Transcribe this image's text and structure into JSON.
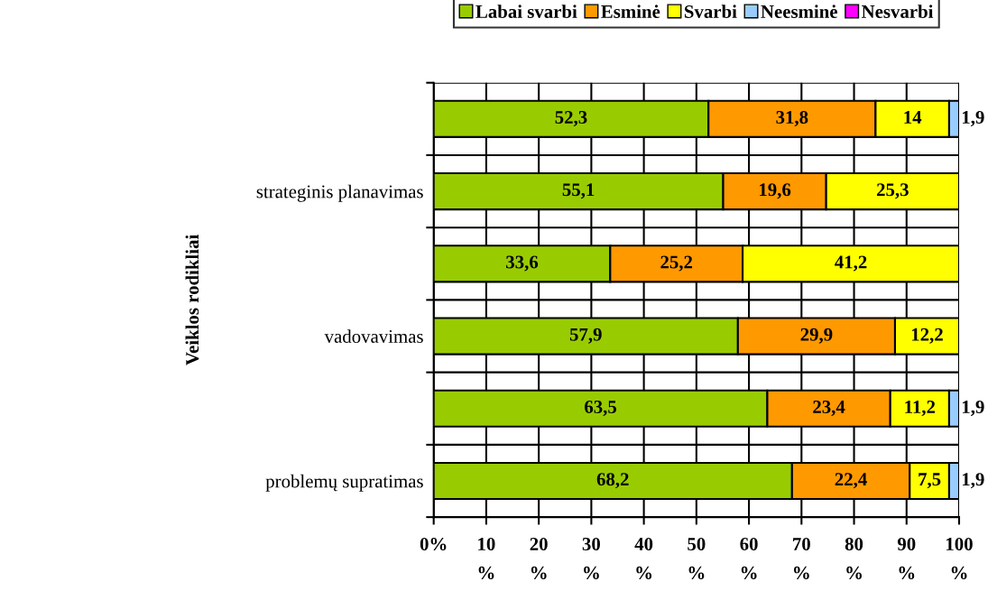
{
  "chart_data": {
    "type": "bar",
    "orientation": "horizontal",
    "stacked": true,
    "ylabel": "Veiklos rodikliai",
    "categories": [
      null,
      "strateginis planavimas",
      null,
      "vadovavimas",
      null,
      "problemų supratimas"
    ],
    "series": [
      {
        "name": "Labai svarbi",
        "color": "#99cc00",
        "values": [
          52.3,
          55.1,
          33.6,
          57.9,
          63.5,
          68.2
        ],
        "value_labels": [
          "52,3",
          "55,1",
          "33,6",
          "57,9",
          "63,5",
          "68,2"
        ]
      },
      {
        "name": "Esminė",
        "color": "#ff9900",
        "values": [
          31.8,
          19.6,
          25.2,
          29.9,
          23.4,
          22.4
        ],
        "value_labels": [
          "31,8",
          "19,6",
          "25,2",
          "29,9",
          "23,4",
          "22,4"
        ]
      },
      {
        "name": "Svarbi",
        "color": "#ffff00",
        "values": [
          14,
          25.3,
          41.2,
          12.2,
          11.2,
          7.5
        ],
        "value_labels": [
          "14",
          "25,3",
          "41,2",
          "12,2",
          "11,2",
          "7,5"
        ]
      },
      {
        "name": "Neesminė",
        "color": "#99ccff",
        "values": [
          1.9,
          null,
          null,
          null,
          1.9,
          1.9
        ],
        "value_labels": [
          "1,9",
          null,
          null,
          null,
          "1,9",
          "1,9"
        ]
      },
      {
        "name": "Nesvarbi",
        "color": "#ff00ff",
        "values": [
          null,
          null,
          null,
          null,
          null,
          null
        ],
        "value_labels": [
          null,
          null,
          null,
          null,
          null,
          null
        ]
      }
    ],
    "xlim": [
      0,
      100
    ],
    "xticks": [
      {
        "value": 0,
        "label": "0%"
      },
      {
        "value": 10,
        "label": "10\n%"
      },
      {
        "value": 20,
        "label": "20\n%"
      },
      {
        "value": 30,
        "label": "30\n%"
      },
      {
        "value": 40,
        "label": "40\n%"
      },
      {
        "value": 50,
        "label": "50\n%"
      },
      {
        "value": 60,
        "label": "60\n%"
      },
      {
        "value": 70,
        "label": "70\n%"
      },
      {
        "value": 80,
        "label": "80\n%"
      },
      {
        "value": 90,
        "label": "90\n%"
      },
      {
        "value": 100,
        "label": "100\n%"
      }
    ],
    "grid": true,
    "legend": "top"
  }
}
